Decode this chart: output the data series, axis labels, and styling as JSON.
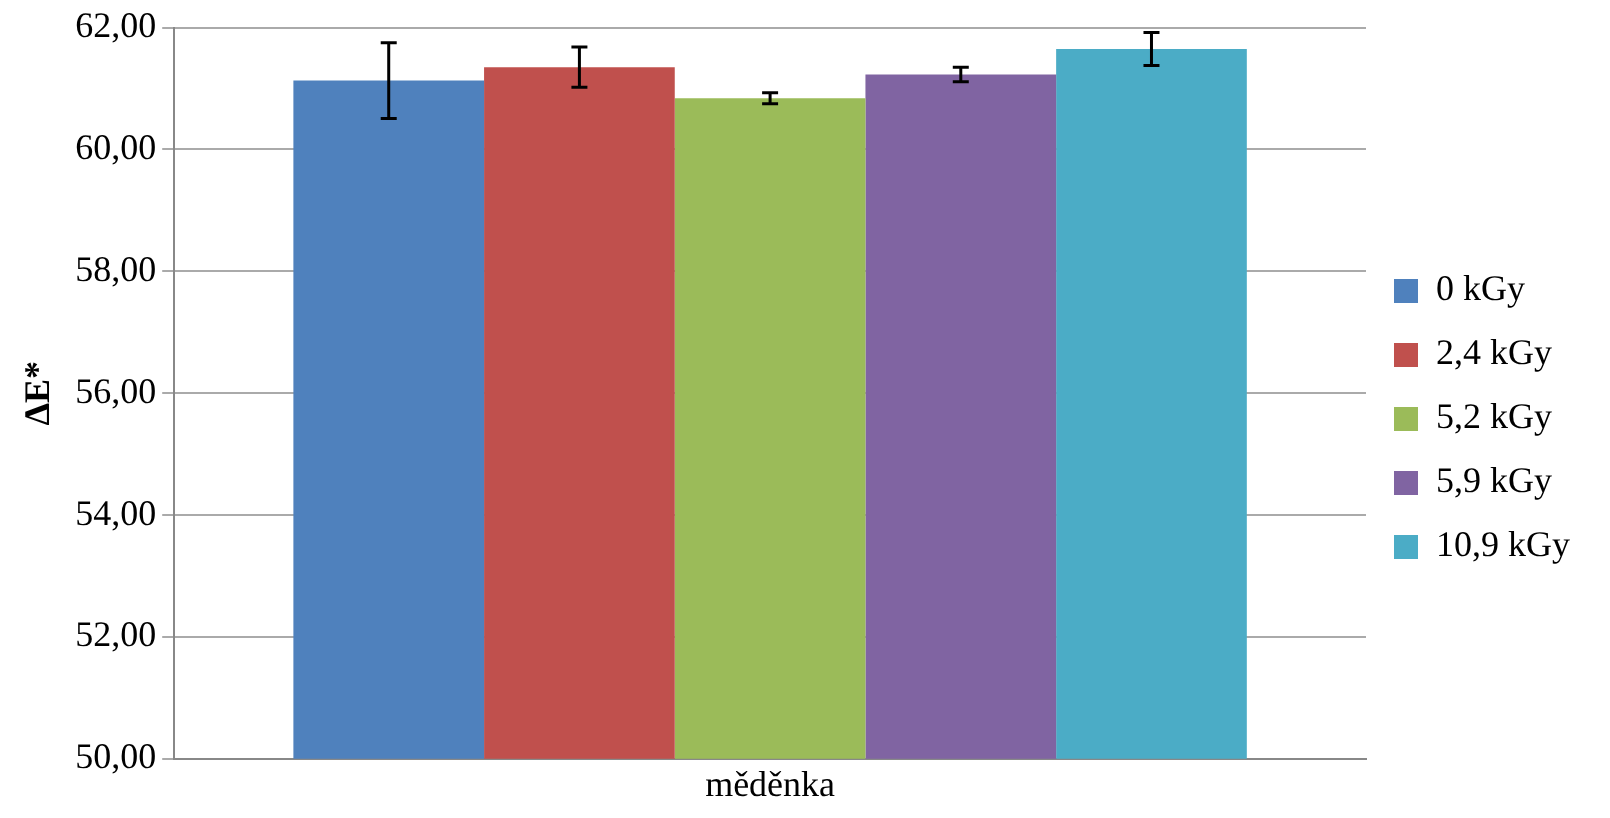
{
  "chart_data": {
    "type": "bar",
    "ylabel": "ΔE*",
    "categories": [
      "měděnka"
    ],
    "series": [
      {
        "name": "0 kGy",
        "color": "#4f81bd",
        "values": [
          61.13
        ],
        "errors": [
          0.62
        ]
      },
      {
        "name": "2,4 kGy",
        "color": "#c0504d",
        "values": [
          61.35
        ],
        "errors": [
          0.33
        ]
      },
      {
        "name": "5,2 kGy",
        "color": "#9bbb59",
        "values": [
          60.84
        ],
        "errors": [
          0.09
        ]
      },
      {
        "name": "5,9 kGy",
        "color": "#8064a2",
        "values": [
          61.23
        ],
        "errors": [
          0.12
        ]
      },
      {
        "name": "10,9 kGy",
        "color": "#4bacc6",
        "values": [
          61.65
        ],
        "errors": [
          0.27
        ]
      }
    ],
    "ylim": [
      50,
      62
    ],
    "yticks": [
      {
        "value": 50,
        "label": "50,00"
      },
      {
        "value": 52,
        "label": "52,00"
      },
      {
        "value": 54,
        "label": "54,00"
      },
      {
        "value": 56,
        "label": "56,00"
      },
      {
        "value": 58,
        "label": "58,00"
      },
      {
        "value": 60,
        "label": "60,00"
      },
      {
        "value": 62,
        "label": "62,00"
      }
    ],
    "grid": "y",
    "legend": "right"
  }
}
